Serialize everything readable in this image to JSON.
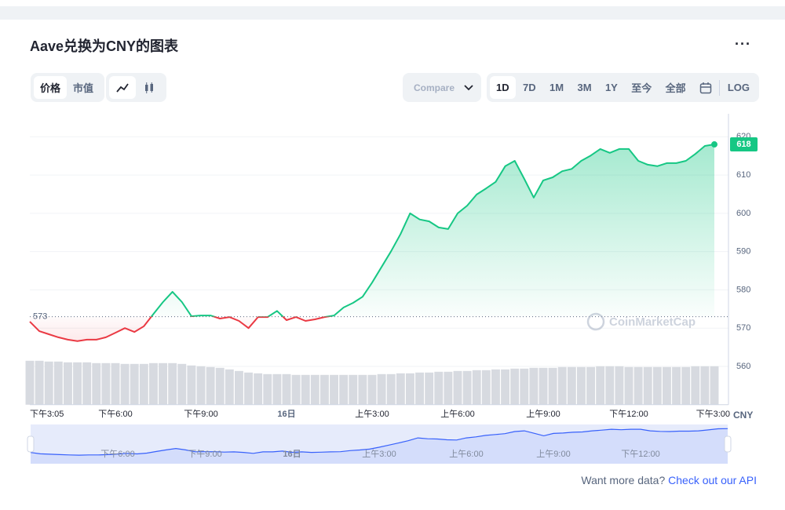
{
  "header": {
    "title": "Aave兑换为CNY的图表"
  },
  "toolbar": {
    "tabs": [
      "价格",
      "市值"
    ],
    "compare": "Compare",
    "ranges": [
      "1D",
      "7D",
      "1M",
      "3M",
      "1Y",
      "至今",
      "全部"
    ],
    "log": "LOG"
  },
  "chart_data": {
    "type": "line",
    "categories": [
      "下午3:05",
      null,
      null,
      null,
      null,
      null,
      null,
      null,
      null,
      "下午6:00",
      null,
      null,
      null,
      null,
      null,
      null,
      null,
      null,
      "下午9:00",
      null,
      null,
      null,
      null,
      null,
      null,
      null,
      null,
      "16日",
      null,
      null,
      null,
      null,
      null,
      null,
      null,
      null,
      "上午3:00",
      null,
      null,
      null,
      null,
      null,
      null,
      null,
      null,
      "上午6:00",
      null,
      null,
      null,
      null,
      null,
      null,
      null,
      null,
      "上午9:00",
      null,
      null,
      null,
      null,
      null,
      null,
      null,
      null,
      "下午12:00",
      null,
      null,
      null,
      null,
      null,
      null,
      null,
      null,
      "下午3:00"
    ],
    "values": [
      571.7,
      569.2,
      568.4,
      567.6,
      567.0,
      566.6,
      567.0,
      567.0,
      567.6,
      568.8,
      570.0,
      569.0,
      570.5,
      573.7,
      576.8,
      579.5,
      576.8,
      573.1,
      573.3,
      573.3,
      572.5,
      572.9,
      571.9,
      570.0,
      572.9,
      572.9,
      574.5,
      572.1,
      572.9,
      571.9,
      572.3,
      572.9,
      573.3,
      575.4,
      576.6,
      578.2,
      581.9,
      586.0,
      590.1,
      594.6,
      600.0,
      598.4,
      597.9,
      596.3,
      595.9,
      600.0,
      602.0,
      604.9,
      606.5,
      608.2,
      612.3,
      613.7,
      609.0,
      604.1,
      608.6,
      609.4,
      611.0,
      611.6,
      613.7,
      615.1,
      616.8,
      615.8,
      616.8,
      616.8,
      613.7,
      612.7,
      612.3,
      613.1,
      613.1,
      613.7,
      615.5,
      617.6,
      618
    ],
    "volume": [
      56,
      56,
      55,
      55,
      54,
      54,
      54,
      53,
      53,
      53,
      52,
      52,
      52,
      53,
      53,
      53,
      52,
      50,
      49,
      48,
      47,
      45,
      43,
      41,
      40,
      39,
      39,
      39,
      38,
      38,
      38,
      38,
      38,
      38,
      38,
      38,
      38,
      39,
      39,
      40,
      40,
      41,
      41,
      42,
      42,
      43,
      43,
      44,
      44,
      45,
      45,
      46,
      46,
      47,
      47,
      47,
      48,
      48,
      48,
      48,
      49,
      49,
      49,
      48,
      48,
      48,
      48,
      48,
      48,
      48,
      49,
      49,
      49
    ],
    "ylim": [
      550,
      626
    ],
    "yticks": [
      560,
      570,
      580,
      590,
      600,
      610,
      620
    ],
    "reference_price": 573,
    "current_price": 618,
    "up_color": "#16c784",
    "down_color": "#ea3943",
    "volume_color": "#d7dae0",
    "navigator_color": "#3861fb",
    "unit": "CNY",
    "watermark": "CoinMarketCap",
    "grid": true
  },
  "footer": {
    "question": "Want more data?",
    "link": "Check out our API"
  }
}
